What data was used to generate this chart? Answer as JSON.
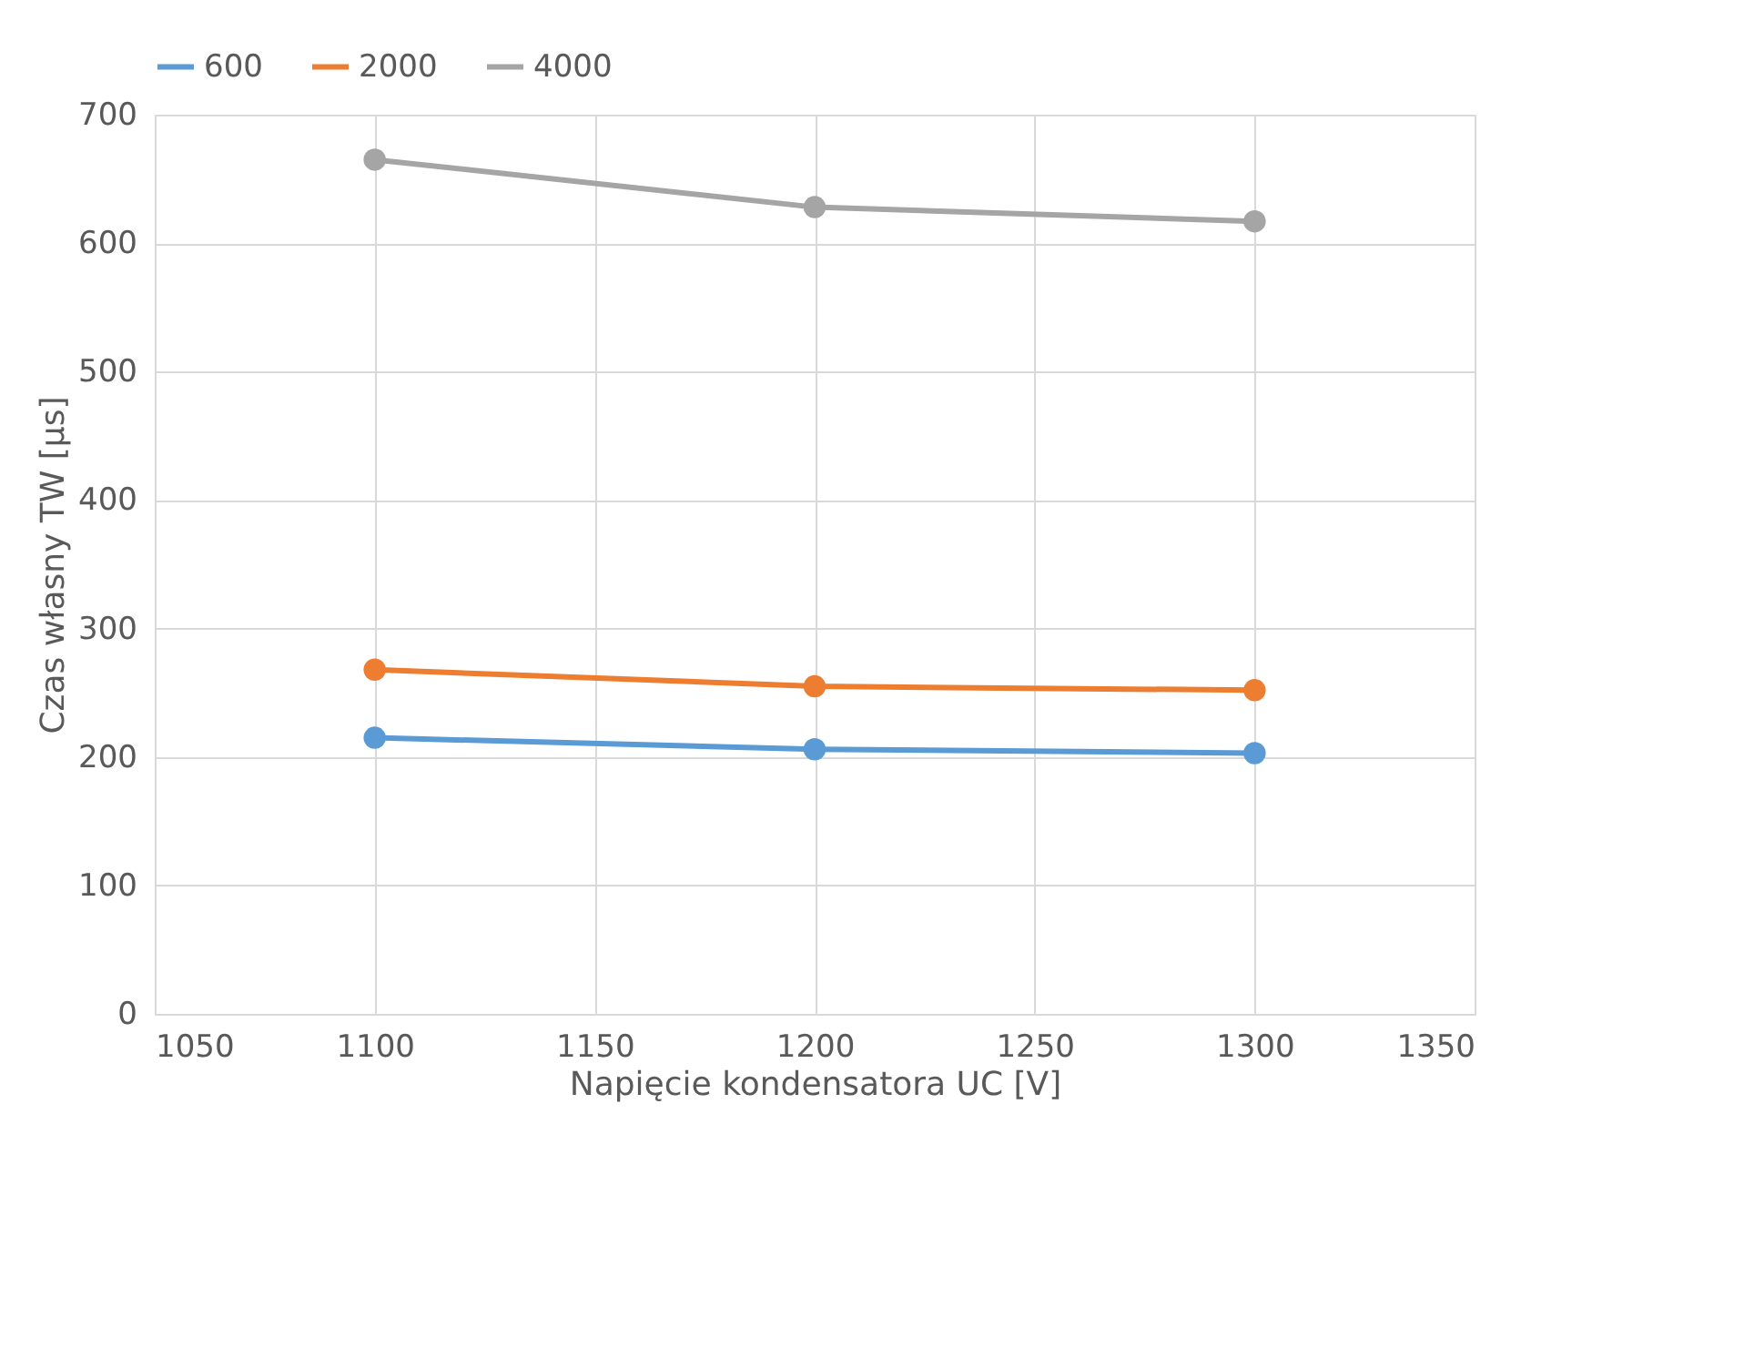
{
  "chart_data": {
    "type": "line",
    "xlabel": "Napięcie kondensatora UC [V]",
    "ylabel": "Czas własny TW [µs]",
    "x": [
      1100,
      1200,
      1300
    ],
    "series": [
      {
        "name": "600",
        "color": "#5b9bd5",
        "values": [
          215,
          206,
          203
        ]
      },
      {
        "name": "2000",
        "color": "#ed7d31",
        "values": [
          268,
          255,
          252
        ]
      },
      {
        "name": "4000",
        "color": "#a5a5a5",
        "values": [
          665,
          628,
          617
        ]
      }
    ],
    "xlim": [
      1050,
      1350
    ],
    "xticks": [
      1050,
      1100,
      1150,
      1200,
      1250,
      1300,
      1350
    ],
    "ylim": [
      0,
      700
    ],
    "yticks": [
      0,
      100,
      200,
      300,
      400,
      500,
      600,
      700
    ],
    "grid": true,
    "legend": "top",
    "marker": "circle",
    "line_style": "solid"
  }
}
